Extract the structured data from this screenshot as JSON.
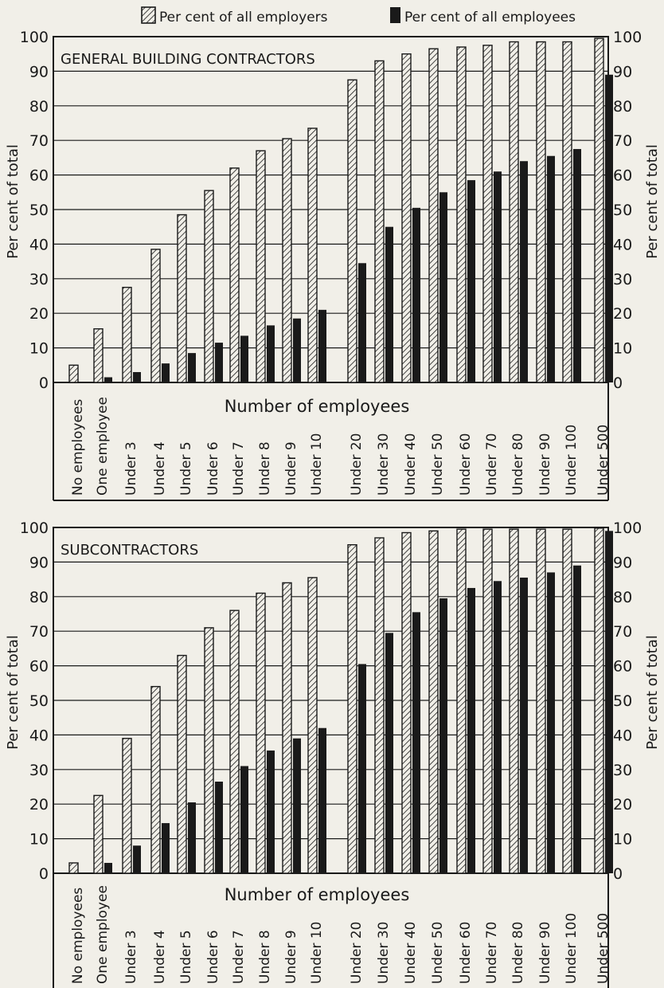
{
  "legend": {
    "employers_label": "Per cent of all employers",
    "employees_label": "Per cent of all employees"
  },
  "colors": {
    "ink": "#1a1a1a",
    "paper": "#f1efe8"
  },
  "chart_data": [
    {
      "type": "bar",
      "title": "GENERAL BUILDING CONTRACTORS",
      "xlabel": "Number of employees",
      "ylabel_left": "Per cent of total",
      "ylabel_right": "Per cent of total",
      "ylim": [
        0,
        100
      ],
      "yticks": [
        "0",
        "10",
        "20",
        "30",
        "40",
        "50",
        "60",
        "70",
        "80",
        "90",
        "100"
      ],
      "grid": true,
      "categories": [
        "No employees",
        "One employee",
        "Under 3",
        "Under 4",
        "Under 5",
        "Under 6",
        "Under 7",
        "Under 8",
        "Under 9",
        "Under 10",
        "Under 20",
        "Under 30",
        "Under 40",
        "Under 50",
        "Under 60",
        "Under 70",
        "Under 80",
        "Under 90",
        "Under 100",
        "Under 500"
      ],
      "series": [
        {
          "name": "Per cent of all employers",
          "pattern": "hatched",
          "values": [
            5,
            15.5,
            27.5,
            38.5,
            48.5,
            55.5,
            62,
            67,
            70.5,
            73.5,
            87.5,
            93,
            95,
            96.5,
            97,
            97.5,
            98.5,
            98.5,
            98.5,
            99.5
          ]
        },
        {
          "name": "Per cent of all employees",
          "pattern": "solid",
          "values": [
            0,
            1.5,
            3,
            5.5,
            8.5,
            11.5,
            13.5,
            16.5,
            18.5,
            21,
            34.5,
            45,
            50.5,
            55,
            58.5,
            61,
            64,
            65.5,
            67.5,
            89
          ]
        }
      ]
    },
    {
      "type": "bar",
      "title": "SUBCONTRACTORS",
      "xlabel": "Number of employees",
      "ylabel_left": "Per cent of total",
      "ylabel_right": "Per cent of total",
      "ylim": [
        0,
        100
      ],
      "yticks": [
        "0",
        "10",
        "20",
        "30",
        "40",
        "50",
        "60",
        "70",
        "80",
        "90",
        "100"
      ],
      "grid": true,
      "categories": [
        "No employees",
        "One employee",
        "Under 3",
        "Under 4",
        "Under 5",
        "Under 6",
        "Under 7",
        "Under 8",
        "Under 9",
        "Under 10",
        "Under 20",
        "Under 30",
        "Under 40",
        "Under 50",
        "Under 60",
        "Under 70",
        "Under 80",
        "Under 90",
        "Under 100",
        "Under 500"
      ],
      "series": [
        {
          "name": "Per cent of all employers",
          "pattern": "hatched",
          "values": [
            3,
            22.5,
            39,
            54,
            63,
            71,
            76,
            81,
            84,
            85.5,
            95,
            97,
            98.5,
            99,
            99.5,
            99.5,
            99.5,
            99.5,
            99.5,
            99.8
          ]
        },
        {
          "name": "Per cent of all employees",
          "pattern": "solid",
          "values": [
            0,
            3,
            8,
            14.5,
            20.5,
            26.5,
            31,
            35.5,
            39,
            42,
            60.5,
            69.5,
            75.5,
            79.5,
            82.5,
            84.5,
            85.5,
            87,
            89,
            99
          ]
        }
      ]
    }
  ]
}
